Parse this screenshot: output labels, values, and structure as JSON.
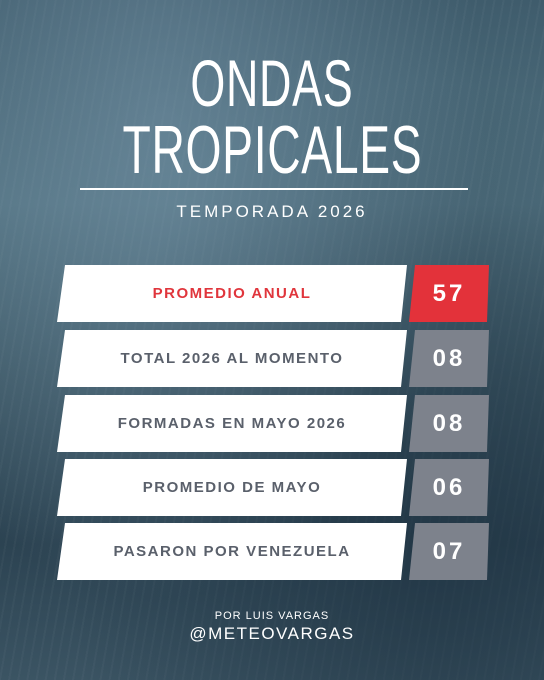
{
  "header": {
    "title_lines": [
      "ONDAS",
      "TROPICALES"
    ],
    "subtitle": "TEMPORADA 2026"
  },
  "table": {
    "rows": [
      [
        "PROMEDIO ANUAL",
        "57"
      ],
      [
        "TOTAL 2026 AL MOMENTO",
        "08"
      ],
      [
        "FORMADAS EN MAYO 2026",
        "08"
      ],
      [
        "PROMEDIO DE MAYO",
        "06"
      ],
      [
        "PASARON POR VENEZUELA",
        "07"
      ]
    ]
  },
  "footer": {
    "credit": "POR LUIS VARGAS",
    "handle": "@METEOVARGAS"
  }
}
